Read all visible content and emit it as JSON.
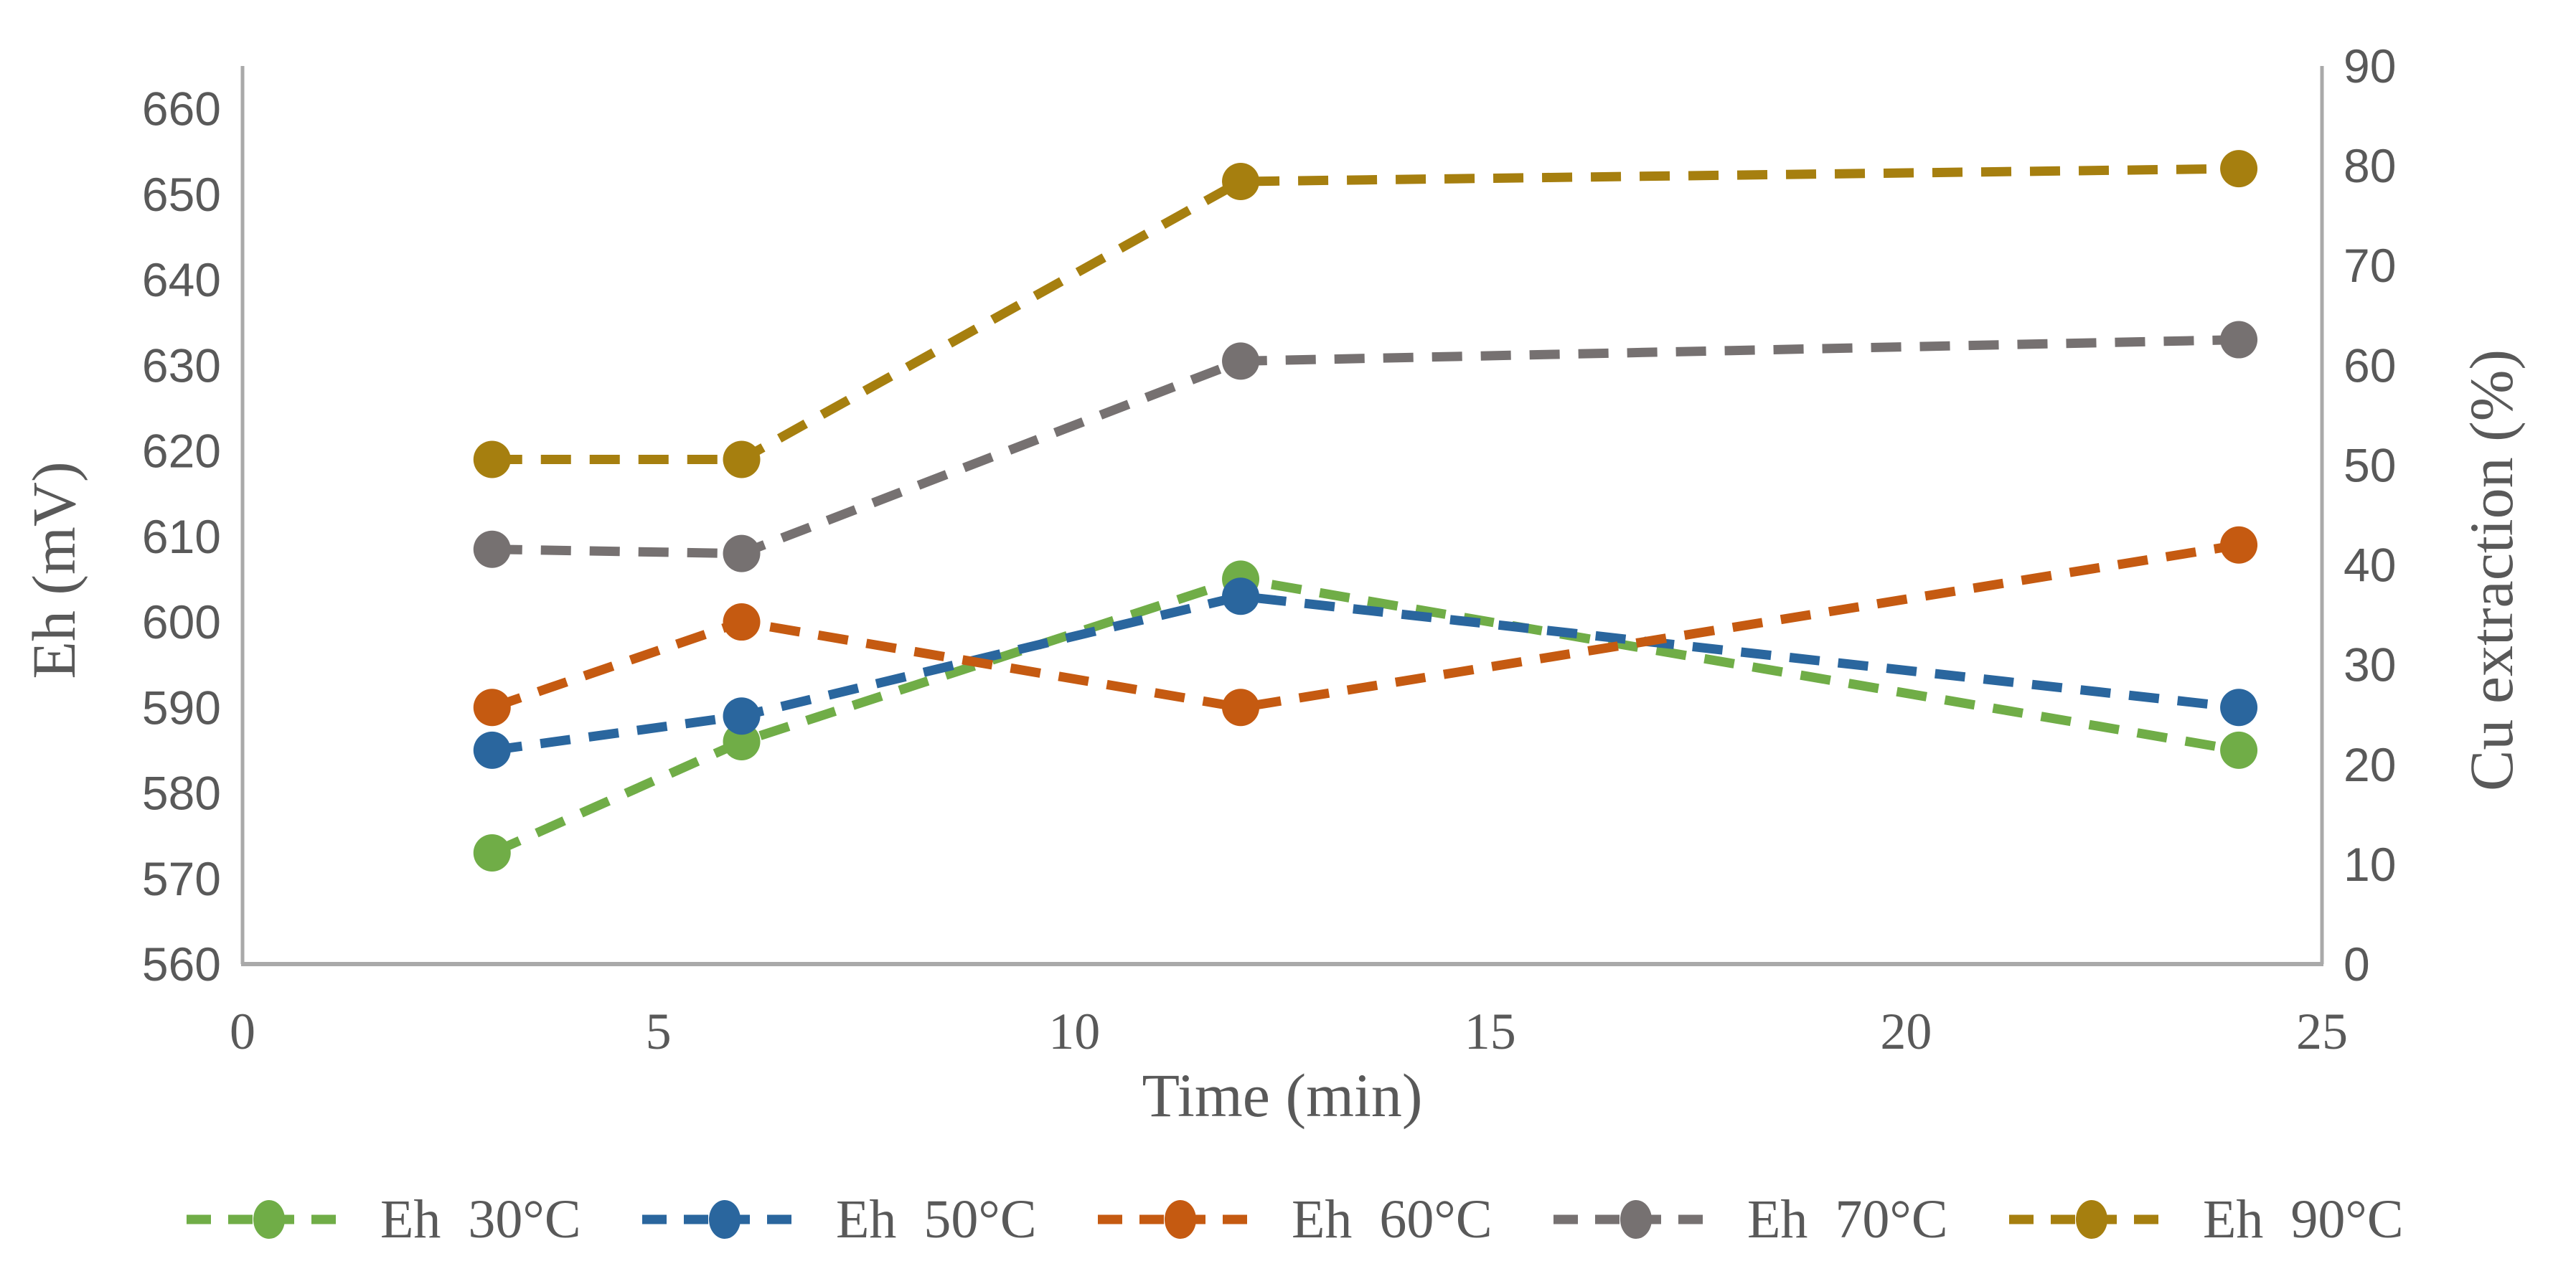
{
  "chart_data": {
    "type": "line",
    "title": "",
    "line_style": "dashed",
    "marker": "circle",
    "grid": false,
    "legend_position": "bottom",
    "x": [
      3,
      6,
      12,
      24
    ],
    "x_axis": {
      "label": "Time (min)",
      "min": 0,
      "max": 25,
      "tick_step": 5,
      "ticks": [
        0,
        5,
        10,
        15,
        20,
        25
      ]
    },
    "y_axis_left": {
      "label": "Eh (mV)",
      "min": 560,
      "max": 660,
      "plot_top_value": 665,
      "tick_step": 10,
      "ticks": [
        560,
        570,
        580,
        590,
        600,
        610,
        620,
        630,
        640,
        650,
        660
      ]
    },
    "y_axis_right": {
      "label": "Cu extraction (%)",
      "min": 0,
      "max": 90,
      "tick_step": 10,
      "ticks": [
        0,
        10,
        20,
        30,
        40,
        50,
        60,
        70,
        80,
        90
      ]
    },
    "series": [
      {
        "name": "Eh  30°C",
        "color": "#70AD47",
        "values": [
          573,
          586,
          605,
          585
        ]
      },
      {
        "name": "Eh  50°C",
        "color": "#2A669E",
        "values": [
          585,
          589,
          603,
          590
        ]
      },
      {
        "name": "Eh  60°C",
        "color": "#C55A11",
        "values": [
          590,
          600,
          590,
          609
        ]
      },
      {
        "name": "Eh  70°C",
        "color": "#767171",
        "values": [
          608.5,
          608,
          630.5,
          633
        ]
      },
      {
        "name": "Eh  90°C",
        "color": "#A67F0F",
        "values": [
          619,
          619,
          651.5,
          653
        ]
      }
    ]
  },
  "colors": {
    "axis_line": "#A9A9A9",
    "tick_label": "#595959",
    "axis_title": "#595959"
  }
}
